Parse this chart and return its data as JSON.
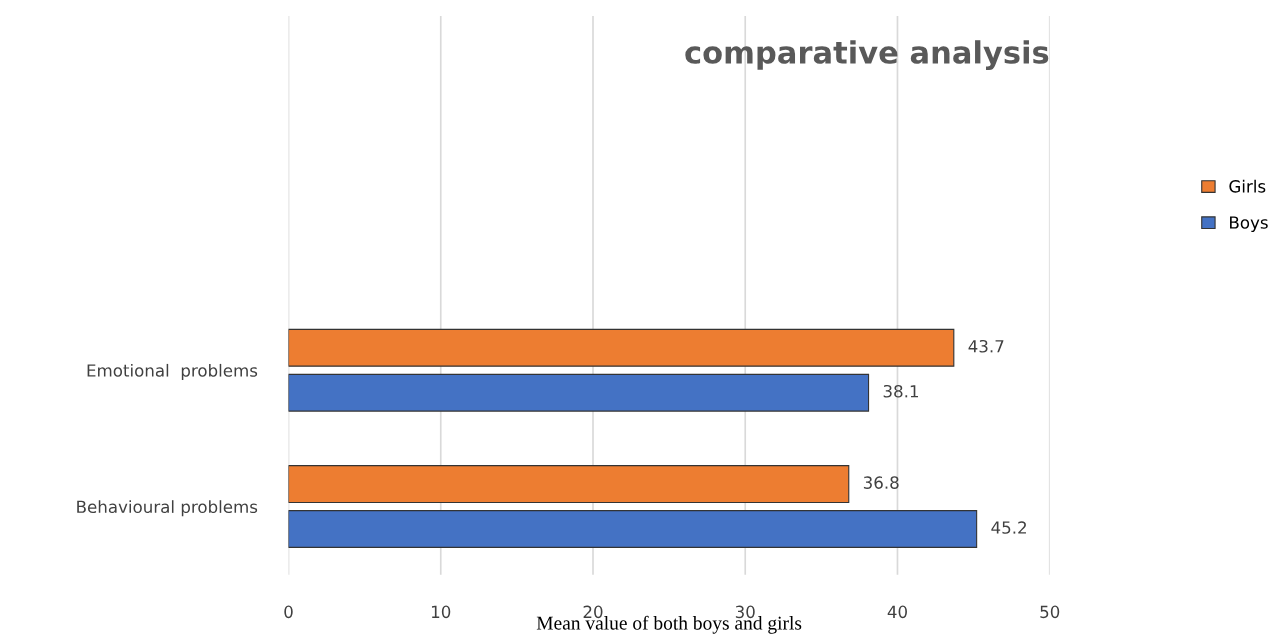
{
  "chart_data": {
    "type": "bar",
    "orientation": "horizontal",
    "title": "comparative analysis",
    "xlabel": "Mean value of both boys and girls",
    "categories": [
      "Emotional  problems",
      "Behavioural problems"
    ],
    "series": [
      {
        "name": "Girls",
        "color": "#ed7d31",
        "values": [
          43.7,
          36.8
        ]
      },
      {
        "name": "Boys",
        "color": "#4472c4",
        "values": [
          38.1,
          45.2
        ]
      }
    ],
    "xlim": [
      0,
      50
    ],
    "xticks": [
      0,
      10,
      20,
      30,
      40,
      50
    ],
    "grid": "x",
    "legend": "right",
    "data_labels": true
  }
}
